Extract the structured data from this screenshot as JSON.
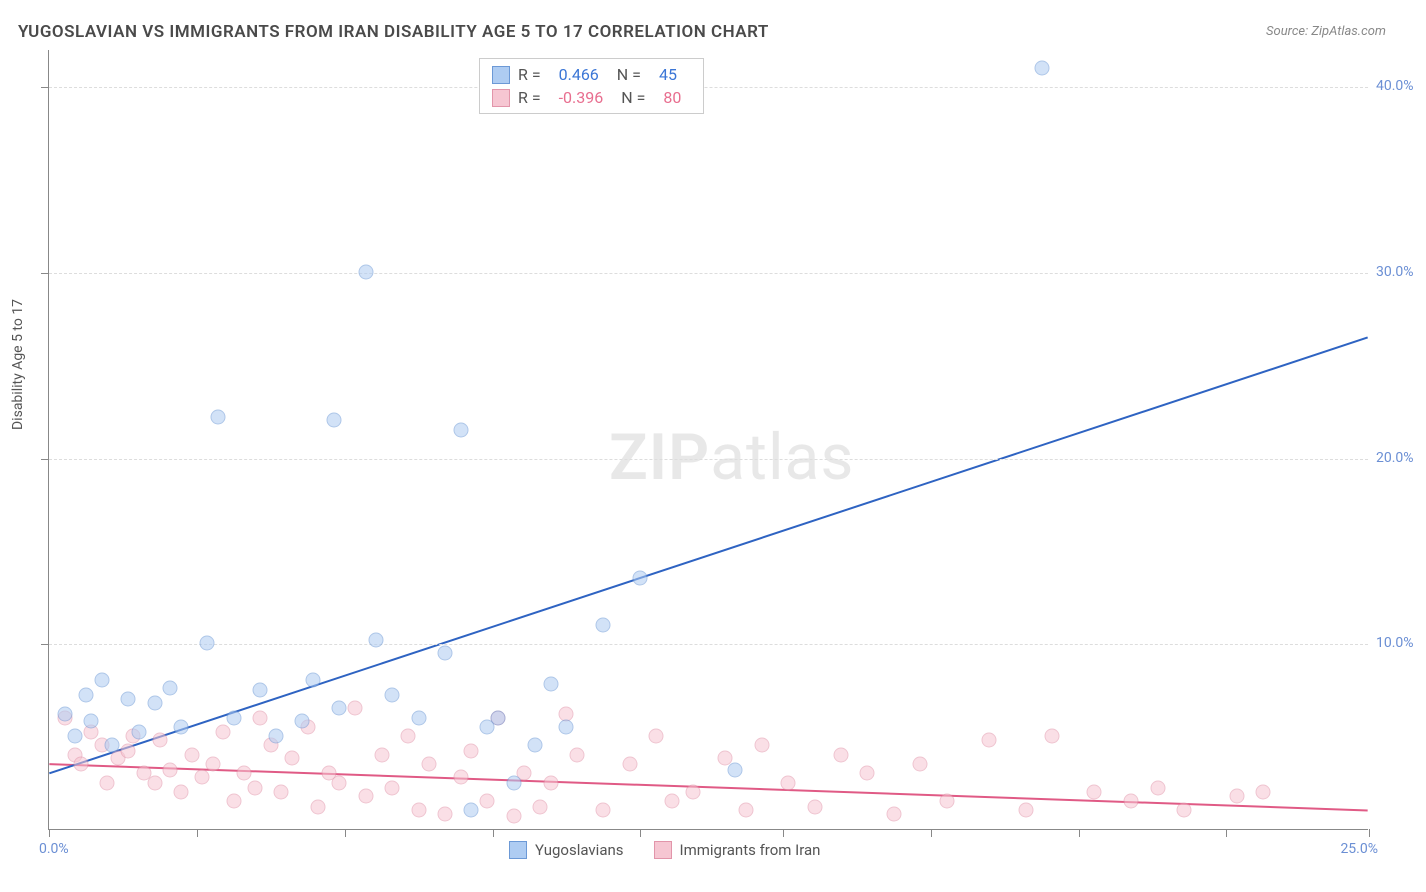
{
  "title": "YUGOSLAVIAN VS IMMIGRANTS FROM IRAN DISABILITY AGE 5 TO 17 CORRELATION CHART",
  "source": "Source: ZipAtlas.com",
  "ylabel": "Disability Age 5 to 17",
  "watermark_a": "ZIP",
  "watermark_b": "atlas",
  "chart": {
    "type": "scatter",
    "xlim": [
      0,
      25
    ],
    "ylim": [
      0,
      42
    ],
    "ytick_labels": [
      "10.0%",
      "20.0%",
      "30.0%",
      "40.0%"
    ],
    "ytick_vals": [
      10,
      20,
      30,
      40
    ],
    "xtick_min": "0.0%",
    "xtick_max": "25.0%",
    "xtick_positions": [
      0,
      2.8,
      5.6,
      8.4,
      11.2,
      13.9,
      16.7,
      19.5,
      22.3,
      25
    ],
    "background_color": "#ffffff",
    "grid_color": "#dddddd",
    "series": {
      "yugoslavians": {
        "label": "Yugoslavians",
        "color_fill": "#aeccf2",
        "color_stroke": "#6c99d6",
        "R": "0.466",
        "N": "45",
        "trend": {
          "x1": 0,
          "y1": 3.0,
          "x2": 25,
          "y2": 26.5,
          "color": "#2e63c2",
          "width": 2
        },
        "points": [
          [
            0.3,
            6.2
          ],
          [
            0.5,
            5.0
          ],
          [
            0.7,
            7.2
          ],
          [
            0.8,
            5.8
          ],
          [
            1.0,
            8.0
          ],
          [
            1.2,
            4.5
          ],
          [
            1.5,
            7.0
          ],
          [
            1.7,
            5.2
          ],
          [
            2.0,
            6.8
          ],
          [
            2.3,
            7.6
          ],
          [
            2.5,
            5.5
          ],
          [
            3.0,
            10.0
          ],
          [
            3.2,
            22.2
          ],
          [
            3.5,
            6.0
          ],
          [
            4.0,
            7.5
          ],
          [
            4.3,
            5.0
          ],
          [
            4.8,
            5.8
          ],
          [
            5.0,
            8.0
          ],
          [
            5.4,
            22.0
          ],
          [
            5.5,
            6.5
          ],
          [
            6.0,
            30.0
          ],
          [
            6.2,
            10.2
          ],
          [
            6.5,
            7.2
          ],
          [
            7.0,
            6.0
          ],
          [
            7.5,
            9.5
          ],
          [
            7.8,
            21.5
          ],
          [
            8.0,
            1.0
          ],
          [
            8.3,
            5.5
          ],
          [
            8.5,
            6.0
          ],
          [
            8.8,
            2.5
          ],
          [
            9.2,
            4.5
          ],
          [
            9.5,
            7.8
          ],
          [
            9.8,
            5.5
          ],
          [
            10.5,
            11.0
          ],
          [
            11.2,
            13.5
          ],
          [
            13.0,
            3.2
          ],
          [
            18.8,
            41.0
          ]
        ]
      },
      "iran": {
        "label": "Immigrants from Iran",
        "color_fill": "#f6c6d2",
        "color_stroke": "#e295aa",
        "R": "-0.396",
        "N": "80",
        "trend": {
          "x1": 0,
          "y1": 3.5,
          "x2": 25,
          "y2": 1.0,
          "color": "#e05a85",
          "width": 2
        },
        "points": [
          [
            0.3,
            6.0
          ],
          [
            0.5,
            4.0
          ],
          [
            0.6,
            3.5
          ],
          [
            0.8,
            5.2
          ],
          [
            1.0,
            4.5
          ],
          [
            1.1,
            2.5
          ],
          [
            1.3,
            3.8
          ],
          [
            1.5,
            4.2
          ],
          [
            1.6,
            5.0
          ],
          [
            1.8,
            3.0
          ],
          [
            2.0,
            2.5
          ],
          [
            2.1,
            4.8
          ],
          [
            2.3,
            3.2
          ],
          [
            2.5,
            2.0
          ],
          [
            2.7,
            4.0
          ],
          [
            2.9,
            2.8
          ],
          [
            3.1,
            3.5
          ],
          [
            3.3,
            5.2
          ],
          [
            3.5,
            1.5
          ],
          [
            3.7,
            3.0
          ],
          [
            3.9,
            2.2
          ],
          [
            4.0,
            6.0
          ],
          [
            4.2,
            4.5
          ],
          [
            4.4,
            2.0
          ],
          [
            4.6,
            3.8
          ],
          [
            4.9,
            5.5
          ],
          [
            5.1,
            1.2
          ],
          [
            5.3,
            3.0
          ],
          [
            5.5,
            2.5
          ],
          [
            5.8,
            6.5
          ],
          [
            6.0,
            1.8
          ],
          [
            6.3,
            4.0
          ],
          [
            6.5,
            2.2
          ],
          [
            6.8,
            5.0
          ],
          [
            7.0,
            1.0
          ],
          [
            7.2,
            3.5
          ],
          [
            7.5,
            0.8
          ],
          [
            7.8,
            2.8
          ],
          [
            8.0,
            4.2
          ],
          [
            8.3,
            1.5
          ],
          [
            8.5,
            6.0
          ],
          [
            8.8,
            0.7
          ],
          [
            9.0,
            3.0
          ],
          [
            9.3,
            1.2
          ],
          [
            9.5,
            2.5
          ],
          [
            9.8,
            6.2
          ],
          [
            10.0,
            4.0
          ],
          [
            10.5,
            1.0
          ],
          [
            11.0,
            3.5
          ],
          [
            11.5,
            5.0
          ],
          [
            11.8,
            1.5
          ],
          [
            12.2,
            2.0
          ],
          [
            12.8,
            3.8
          ],
          [
            13.2,
            1.0
          ],
          [
            13.5,
            4.5
          ],
          [
            14.0,
            2.5
          ],
          [
            14.5,
            1.2
          ],
          [
            15.0,
            4.0
          ],
          [
            15.5,
            3.0
          ],
          [
            16.0,
            0.8
          ],
          [
            16.5,
            3.5
          ],
          [
            17.0,
            1.5
          ],
          [
            17.8,
            4.8
          ],
          [
            18.5,
            1.0
          ],
          [
            19.0,
            5.0
          ],
          [
            19.8,
            2.0
          ],
          [
            20.5,
            1.5
          ],
          [
            21.0,
            2.2
          ],
          [
            21.5,
            1.0
          ],
          [
            22.5,
            1.8
          ],
          [
            23.0,
            2.0
          ]
        ]
      }
    }
  },
  "legend_top": {
    "r_label": "R =",
    "n_label": "N ="
  }
}
